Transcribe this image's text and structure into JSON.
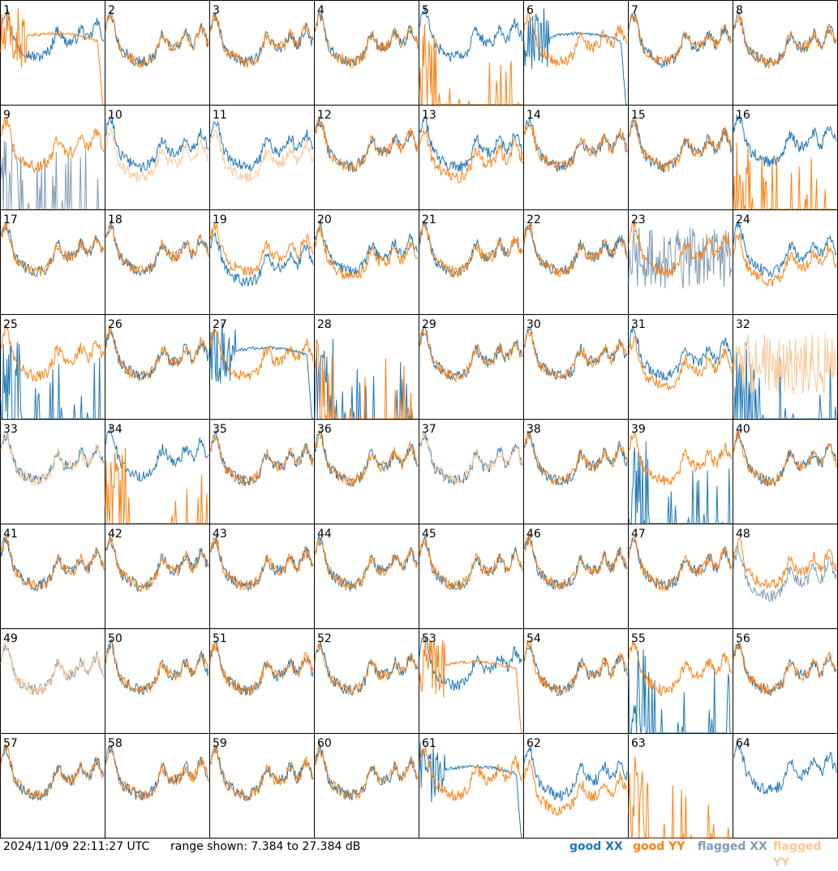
{
  "footer": {
    "timestamp": "2024/11/09 22:11:27 UTC",
    "range": "range shown: 7.384 to 27.384 dB"
  },
  "legend": [
    {
      "label": "good XX",
      "color": "#1f77b4"
    },
    {
      "label": "good YY",
      "color": "#ff7f0e"
    },
    {
      "label": "flagged XX",
      "color": "#7f9bb5"
    },
    {
      "label": "flagged YY",
      "color": "#fcc795"
    }
  ],
  "chart_data": {
    "type": "line",
    "layout": "8x8 small multiples",
    "ylim": [
      7.384,
      27.384
    ],
    "y_unit": "dB",
    "styles": {
      "good_xx": "#1f77b4",
      "good_yy": "#ff7f0e",
      "flagged_xx": "#7f9bb5",
      "flagged_yy": "#fcc795"
    },
    "panels": [
      {
        "label": "1",
        "xx": "normal",
        "yy": "decay",
        "xx_off": 1,
        "yy_off": -1
      },
      {
        "label": "2",
        "xx": "normal",
        "yy": "normal"
      },
      {
        "label": "3",
        "xx": "normal",
        "yy": "normal"
      },
      {
        "label": "4",
        "xx": "normal",
        "yy": "normal"
      },
      {
        "label": "5",
        "xx": "normal",
        "yy": "spikes",
        "xx_off": 1
      },
      {
        "label": "6",
        "xx": "decay",
        "yy": "normal"
      },
      {
        "label": "7",
        "xx": "normal",
        "yy": "normal"
      },
      {
        "label": "8",
        "xx": "normal",
        "yy": "normal"
      },
      {
        "label": "9",
        "xx": "spikes",
        "yy": "normal",
        "flag_xx": true
      },
      {
        "label": "10",
        "xx": "normal",
        "yy": "normal",
        "flag_yy": true,
        "yy_off": -2
      },
      {
        "label": "11",
        "xx": "normal",
        "yy": "normal",
        "flag_yy": true,
        "yy_off": -2
      },
      {
        "label": "12",
        "xx": "normal",
        "yy": "normal"
      },
      {
        "label": "13",
        "xx": "normal",
        "yy": "normal",
        "yy_off": -2
      },
      {
        "label": "14",
        "xx": "normal",
        "yy": "normal"
      },
      {
        "label": "15",
        "xx": "normal",
        "yy": "normal"
      },
      {
        "label": "16",
        "xx": "normal",
        "yy": "spikes",
        "xx_off": 1
      },
      {
        "label": "17",
        "xx": "normal",
        "yy": "normal"
      },
      {
        "label": "18",
        "xx": "normal",
        "yy": "normal"
      },
      {
        "label": "19",
        "xx": "normal",
        "yy": "normal",
        "xx_off": -2
      },
      {
        "label": "20",
        "xx": "normal",
        "yy": "normal",
        "yy_off": -1
      },
      {
        "label": "21",
        "xx": "normal",
        "yy": "normal"
      },
      {
        "label": "22",
        "xx": "normal",
        "yy": "normal"
      },
      {
        "label": "23",
        "xx": "noisy",
        "yy": "normal",
        "flag_xx": true
      },
      {
        "label": "24",
        "xx": "normal",
        "yy": "normal",
        "yy_off": -2
      },
      {
        "label": "25",
        "xx": "spikes",
        "yy": "normal"
      },
      {
        "label": "26",
        "xx": "normal",
        "yy": "normal"
      },
      {
        "label": "27",
        "xx": "decay",
        "yy": "normal"
      },
      {
        "label": "28",
        "xx": "spikes",
        "yy": "spikes"
      },
      {
        "label": "29",
        "xx": "normal",
        "yy": "normal"
      },
      {
        "label": "30",
        "xx": "normal",
        "yy": "normal"
      },
      {
        "label": "31",
        "xx": "normal",
        "yy": "normal",
        "yy_off": -2
      },
      {
        "label": "32",
        "xx": "spikes",
        "yy": "noisy",
        "flag_yy": true
      },
      {
        "label": "33",
        "xx": "normal",
        "yy": "normal",
        "flag_yy": true
      },
      {
        "label": "34",
        "xx": "normal",
        "yy": "spikes",
        "xx_off": 1
      },
      {
        "label": "35",
        "xx": "normal",
        "yy": "normal"
      },
      {
        "label": "36",
        "xx": "normal",
        "yy": "normal"
      },
      {
        "label": "37",
        "xx": "normal",
        "yy": "normal",
        "flag_yy": true
      },
      {
        "label": "38",
        "xx": "normal",
        "yy": "normal"
      },
      {
        "label": "39",
        "xx": "spikes",
        "yy": "normal"
      },
      {
        "label": "40",
        "xx": "normal",
        "yy": "normal"
      },
      {
        "label": "41",
        "xx": "normal",
        "yy": "normal"
      },
      {
        "label": "42",
        "xx": "normal",
        "yy": "normal"
      },
      {
        "label": "43",
        "xx": "normal",
        "yy": "normal"
      },
      {
        "label": "44",
        "xx": "normal",
        "yy": "normal"
      },
      {
        "label": "45",
        "xx": "normal",
        "yy": "normal"
      },
      {
        "label": "46",
        "xx": "normal",
        "yy": "normal"
      },
      {
        "label": "47",
        "xx": "normal",
        "yy": "normal"
      },
      {
        "label": "48",
        "xx": "normal",
        "yy": "normal",
        "flag_xx": true,
        "xx_off": -2
      },
      {
        "label": "49",
        "xx": "normal",
        "yy": "normal",
        "flag_xx": true,
        "flag_yy": true
      },
      {
        "label": "50",
        "xx": "normal",
        "yy": "normal"
      },
      {
        "label": "51",
        "xx": "normal",
        "yy": "normal"
      },
      {
        "label": "52",
        "xx": "normal",
        "yy": "normal"
      },
      {
        "label": "53",
        "xx": "normal",
        "yy": "decay",
        "xx_off": 1
      },
      {
        "label": "54",
        "xx": "normal",
        "yy": "normal"
      },
      {
        "label": "55",
        "xx": "spikes",
        "yy": "normal"
      },
      {
        "label": "56",
        "xx": "normal",
        "yy": "normal"
      },
      {
        "label": "57",
        "xx": "normal",
        "yy": "normal"
      },
      {
        "label": "58",
        "xx": "normal",
        "yy": "normal"
      },
      {
        "label": "59",
        "xx": "normal",
        "yy": "normal"
      },
      {
        "label": "60",
        "xx": "normal",
        "yy": "normal"
      },
      {
        "label": "61",
        "xx": "decay",
        "yy": "normal"
      },
      {
        "label": "62",
        "xx": "normal",
        "yy": "normal",
        "yy_off": -3
      },
      {
        "label": "63",
        "xx": "none",
        "yy": "spikes"
      },
      {
        "label": "64",
        "xx": "normal",
        "yy": "none",
        "xx_off": 1
      }
    ]
  }
}
